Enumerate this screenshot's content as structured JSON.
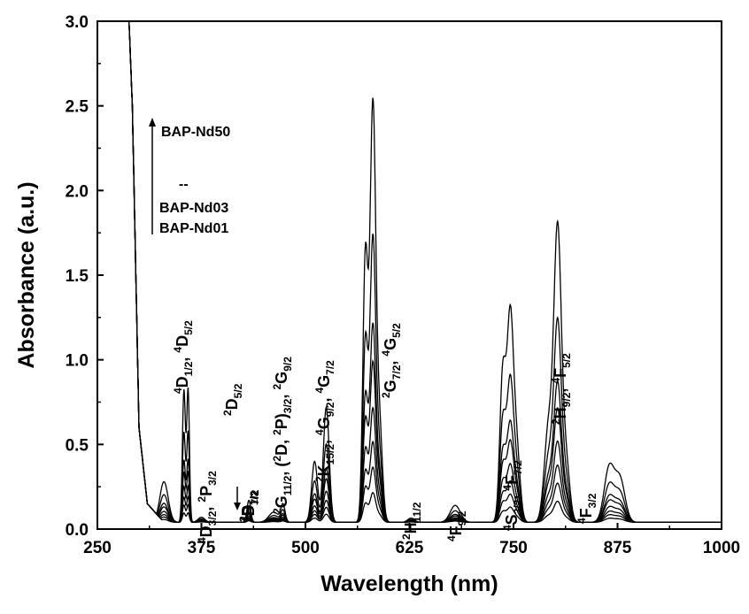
{
  "chart_data": {
    "type": "line",
    "title": "",
    "xlabel": "Wavelength (nm)",
    "ylabel": "Absorbance (a.u.)",
    "xlim": [
      250,
      1000
    ],
    "ylim": [
      0.0,
      3.0
    ],
    "xticks": [
      250,
      375,
      500,
      625,
      750,
      875,
      1000
    ],
    "yticks": [
      0.0,
      0.5,
      1.0,
      1.5,
      2.0,
      2.5,
      3.0
    ],
    "xtick_labels": [
      "250",
      "375",
      "500",
      "625",
      "750",
      "875",
      "1000"
    ],
    "ytick_labels": [
      "0.0",
      "0.5",
      "1.0",
      "1.5",
      "2.0",
      "2.5",
      "3.0"
    ],
    "grid": false,
    "legend": {
      "top": "BAP-Nd50",
      "middle": "--",
      "bottom1": "BAP-Nd03",
      "bottom2": "BAP-Nd01"
    },
    "baseline": 0.04,
    "uv_edge": {
      "start_nm": 252,
      "top_nm": 288,
      "steep_nm": 292,
      "mid_nm": 300,
      "low_nm": 310,
      "floor_nm": 330
    },
    "series_scales": [
      1.0,
      0.68,
      0.47,
      0.38,
      0.27,
      0.19,
      0.13,
      0.07
    ],
    "peaks": [
      {
        "center": 330,
        "width": 5,
        "height": 0.24
      },
      {
        "center": 354,
        "width": 1.8,
        "height": 0.78
      },
      {
        "center": 359,
        "width": 1.6,
        "height": 0.78
      },
      {
        "center": 375,
        "width": 4,
        "height": 0.03
      },
      {
        "center": 432,
        "width": 2.2,
        "height": 0.13
      },
      {
        "center": 462,
        "width": 6,
        "height": 0.06
      },
      {
        "center": 473,
        "width": 2.5,
        "height": 0.1
      },
      {
        "center": 511,
        "width": 3.5,
        "height": 0.36
      },
      {
        "center": 525,
        "width": 3.5,
        "height": 0.68
      },
      {
        "center": 572,
        "width": 3,
        "height": 1.55
      },
      {
        "center": 581,
        "width": 3.5,
        "height": 2.45
      },
      {
        "center": 589,
        "width": 3.5,
        "height": 0.55
      },
      {
        "center": 627,
        "width": 4,
        "height": 0.025
      },
      {
        "center": 680,
        "width": 6,
        "height": 0.1
      },
      {
        "center": 737,
        "width": 3.5,
        "height": 0.85
      },
      {
        "center": 746,
        "width": 4,
        "height": 1.2
      },
      {
        "center": 754,
        "width": 4,
        "height": 0.4
      },
      {
        "center": 792,
        "width": 5,
        "height": 0.55
      },
      {
        "center": 803,
        "width": 4.5,
        "height": 1.7
      },
      {
        "center": 813,
        "width": 4.5,
        "height": 0.35
      },
      {
        "center": 865,
        "width": 6,
        "height": 0.32
      },
      {
        "center": 878,
        "width": 6,
        "height": 0.25
      }
    ],
    "annotations": [
      {
        "parts": [
          [
            "sup",
            "4"
          ],
          [
            "t",
            "D"
          ],
          [
            "sub",
            "7/2"
          ]
        ]
      },
      {
        "parts": [
          [
            "sup",
            "4"
          ],
          [
            "t",
            "D"
          ],
          [
            "sub",
            "1/2"
          ],
          [
            "t",
            ", "
          ],
          [
            "sup",
            "4"
          ],
          [
            "t",
            "D"
          ],
          [
            "sub",
            "5/2"
          ]
        ]
      },
      {
        "parts": [
          [
            "sup",
            "4"
          ],
          [
            "t",
            "D"
          ],
          [
            "sub",
            "3/2"
          ],
          [
            "t",
            ", "
          ],
          [
            "sup",
            "2"
          ],
          [
            "t",
            "P"
          ],
          [
            "sub",
            "3/2"
          ]
        ]
      },
      {
        "parts": [
          [
            "sup",
            "2"
          ],
          [
            "t",
            "D"
          ],
          [
            "sub",
            "5/2"
          ]
        ]
      },
      {
        "parts": [
          [
            "sup",
            "2"
          ],
          [
            "t",
            "P"
          ],
          [
            "sub",
            "1/2"
          ]
        ]
      },
      {
        "parts": [
          [
            "sup",
            "2"
          ],
          [
            "t",
            "G"
          ],
          [
            "sub",
            "11/2"
          ],
          [
            "t",
            ", ("
          ],
          [
            "sup",
            "2"
          ],
          [
            "t",
            "D, "
          ],
          [
            "sup",
            "2"
          ],
          [
            "t",
            "P)"
          ],
          [
            "sub",
            "3/2"
          ],
          [
            "t",
            ", "
          ],
          [
            "sup",
            "2"
          ],
          [
            "t",
            "G"
          ],
          [
            "sub",
            "9/2"
          ]
        ]
      },
      {
        "parts": [
          [
            "sup",
            "2"
          ],
          [
            "t",
            "K"
          ],
          [
            "sub",
            "15/2"
          ],
          [
            "t",
            ", "
          ],
          [
            "sup",
            "4"
          ],
          [
            "t",
            "G"
          ],
          [
            "sub",
            "9/2"
          ],
          [
            "t",
            ", "
          ],
          [
            "sup",
            "4"
          ],
          [
            "t",
            "G"
          ],
          [
            "sub",
            "7/2"
          ]
        ]
      },
      {
        "parts": [
          [
            "sup",
            "2"
          ],
          [
            "t",
            "G"
          ],
          [
            "sub",
            "7/2"
          ],
          [
            "t",
            ", "
          ],
          [
            "sup",
            "4"
          ],
          [
            "t",
            "G"
          ],
          [
            "sub",
            "5/2"
          ]
        ]
      },
      {
        "parts": [
          [
            "sup",
            "2"
          ],
          [
            "t",
            "H"
          ],
          [
            "sub",
            "11/2"
          ]
        ]
      },
      {
        "parts": [
          [
            "sup",
            "4"
          ],
          [
            "t",
            "F"
          ],
          [
            "sub",
            "9/2"
          ]
        ]
      },
      {
        "parts": [
          [
            "sup",
            "4"
          ],
          [
            "t",
            "S"
          ],
          [
            "sub",
            "3/2"
          ],
          [
            "t",
            ", "
          ],
          [
            "sup",
            "4"
          ],
          [
            "t",
            "F"
          ],
          [
            "sub",
            "7/2"
          ]
        ]
      },
      {
        "parts": [
          [
            "sup",
            "2"
          ],
          [
            "t",
            "H"
          ],
          [
            "sub",
            "9/2"
          ],
          [
            "t",
            ", "
          ],
          [
            "sup",
            "4"
          ],
          [
            "t",
            "F"
          ],
          [
            "sub",
            "5/2"
          ]
        ]
      },
      {
        "parts": [
          [
            "sup",
            "4"
          ],
          [
            "t",
            "F"
          ],
          [
            "sub",
            "3/2"
          ]
        ]
      }
    ]
  }
}
